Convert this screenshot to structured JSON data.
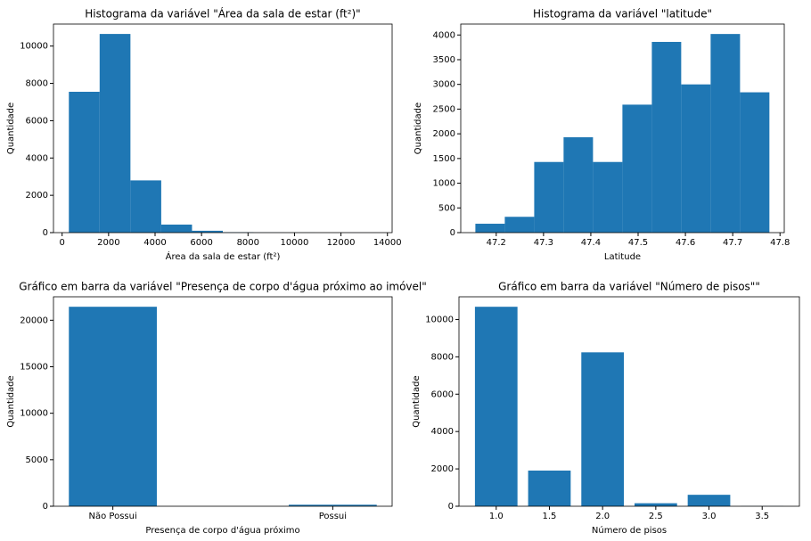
{
  "chart_data": [
    {
      "type": "histogram",
      "title": "Histograma da variável \"Área da sala de estar (ft²)\"",
      "x_label": "Área da sala de estar (ft²)",
      "y_label": "Quantidade",
      "color": "#1f77b4",
      "bins": [
        290,
        1615,
        2940,
        4265,
        5590,
        6915,
        8240,
        9565,
        10890,
        12215,
        13540
      ],
      "values": [
        7550,
        10650,
        2800,
        430,
        100,
        20,
        5,
        3,
        0,
        1
      ],
      "xlim": [
        -372,
        14202
      ],
      "xticks": [
        0,
        2000,
        4000,
        6000,
        8000,
        10000,
        12000,
        14000
      ],
      "ylim": [
        0,
        11180
      ],
      "yticks": [
        0,
        2000,
        4000,
        6000,
        8000,
        10000
      ]
    },
    {
      "type": "histogram",
      "title": "Histograma da variável \"latitude\"",
      "x_label": "Latitude",
      "y_label": "Quantidade",
      "color": "#1f77b4",
      "bins": [
        47.1559,
        47.2181,
        47.2803,
        47.3424,
        47.4046,
        47.4668,
        47.529,
        47.5911,
        47.6533,
        47.7155,
        47.7776
      ],
      "values": [
        180,
        320,
        1430,
        1930,
        1430,
        2590,
        3860,
        3000,
        4020,
        2840
      ],
      "xlim": [
        47.125,
        47.809
      ],
      "xticks": [
        47.2,
        47.3,
        47.4,
        47.5,
        47.6,
        47.7,
        47.8
      ],
      "ylim": [
        0,
        4221
      ],
      "yticks": [
        0,
        500,
        1000,
        1500,
        2000,
        2500,
        3000,
        3500,
        4000
      ]
    },
    {
      "type": "bar",
      "title": "Gráfico em barra da variável \"Presença de corpo d'água próximo ao imóvel\"",
      "x_label": "Presença de corpo d'água próximo",
      "y_label": "Quantidade",
      "color": "#1f77b4",
      "categories": [
        "Não Possui",
        "Possui"
      ],
      "values": [
        21450,
        163
      ],
      "ylim": [
        0,
        22522
      ],
      "yticks": [
        0,
        5000,
        10000,
        15000,
        20000
      ]
    },
    {
      "type": "bar",
      "title": "Gráfico em barra da variável \"Número de pisos\"\"",
      "x_label": "Número de pisos",
      "y_label": "Quantidade",
      "color": "#1f77b4",
      "x": [
        1.0,
        1.5,
        2.0,
        2.5,
        3.0,
        3.5
      ],
      "values": [
        10680,
        1910,
        8240,
        161,
        613,
        8
      ],
      "xlim": [
        0.65,
        3.85
      ],
      "xticks": [
        {
          "value": 1,
          "label": "1.0"
        },
        {
          "value": 1.5,
          "label": "1.5"
        },
        {
          "value": 2,
          "label": "2.0"
        },
        {
          "value": 2.5,
          "label": "2.5"
        },
        {
          "value": 3,
          "label": "3.0"
        },
        {
          "value": 3.5,
          "label": "3.5"
        }
      ],
      "ylim": [
        0,
        11214
      ],
      "yticks": [
        0,
        2000,
        4000,
        6000,
        8000,
        10000
      ]
    }
  ]
}
